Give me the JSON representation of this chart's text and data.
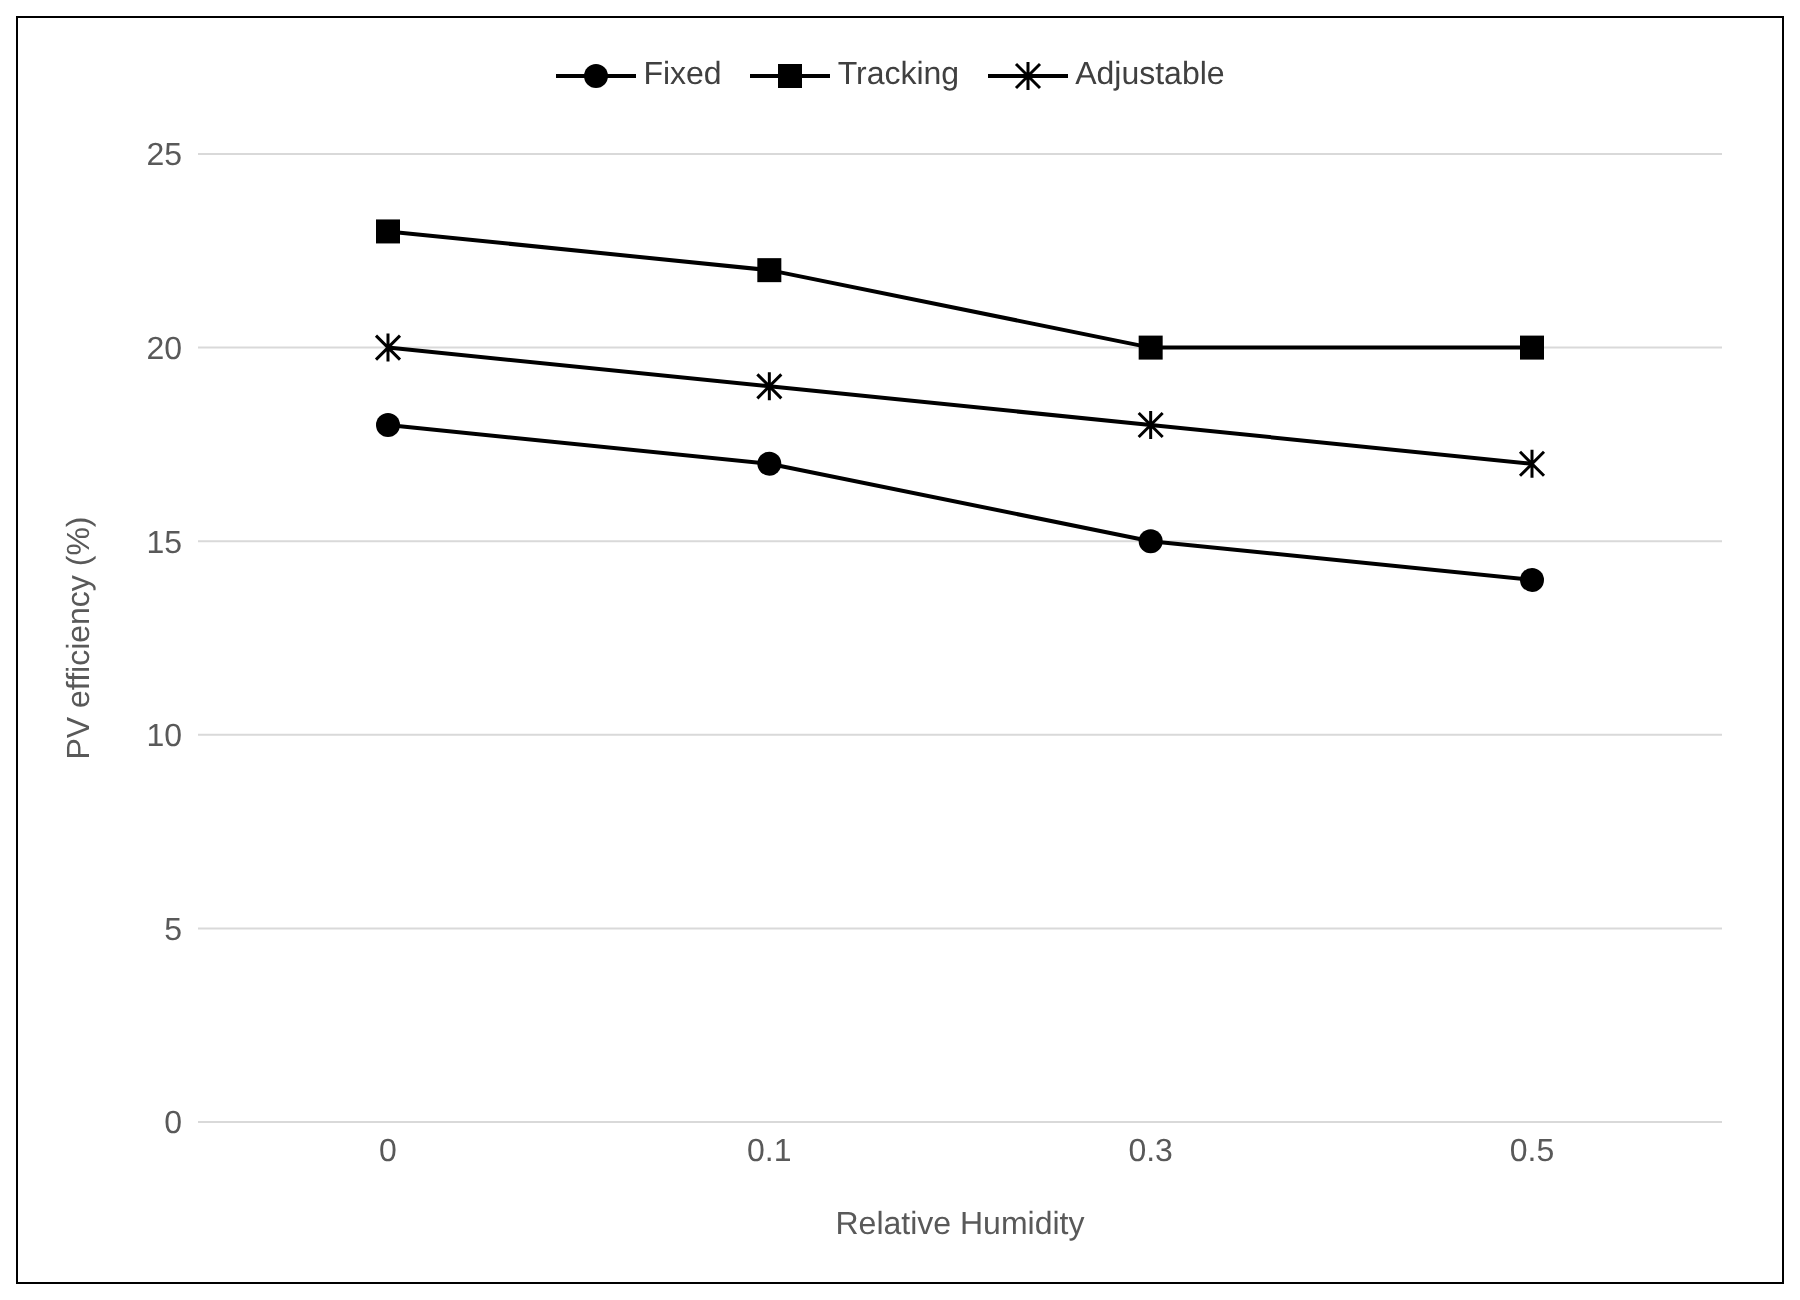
{
  "chart_data": {
    "type": "line",
    "xlabel": "Relative Humidity",
    "ylabel": "PV efficiency (%)",
    "categories": [
      "0",
      "0.1",
      "0.3",
      "0.5"
    ],
    "series": [
      {
        "name": "Fixed",
        "color": "#000000",
        "marker": "circle",
        "values": [
          18,
          17,
          15,
          14
        ]
      },
      {
        "name": "Tracking",
        "color": "#000000",
        "marker": "square",
        "values": [
          23,
          22,
          20,
          20
        ]
      },
      {
        "name": "Adjustable",
        "color": "#000000",
        "marker": "cross",
        "values": [
          20,
          19,
          18,
          17
        ]
      }
    ],
    "ylim": [
      0,
      25
    ],
    "yticks": [
      0,
      5,
      10,
      15,
      20,
      25
    ],
    "grid": "y",
    "legend": "top",
    "line_style": "solid"
  }
}
